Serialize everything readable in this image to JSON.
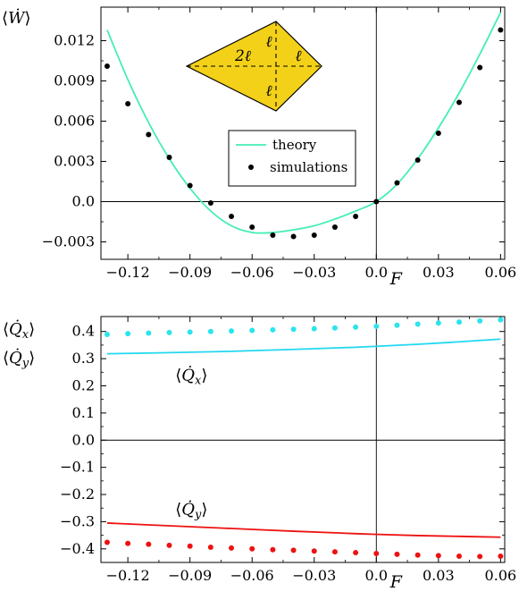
{
  "chart_data": [
    {
      "type": "scatter",
      "panel": "top",
      "ylabel": {
        "main": "W",
        "accent": "˙",
        "left": "⟨",
        "right": "⟩"
      },
      "xlabel": "F",
      "xlim": [
        -0.133,
        0.062
      ],
      "ylim": [
        -0.0043,
        0.0145
      ],
      "x_ticks": [
        -0.12,
        -0.09,
        -0.06,
        -0.03,
        0.0,
        0.03,
        0.06
      ],
      "x_tick_labels": [
        "−0.12",
        "−0.09",
        "−0.06",
        "−0.03",
        "0.0",
        "0.03",
        "0.06"
      ],
      "y_ticks": [
        -0.003,
        0.0,
        0.003,
        0.006,
        0.009,
        0.012
      ],
      "y_tick_labels": [
        "−0.003",
        "0.0",
        "0.003",
        "0.006",
        "0.009",
        "0.012"
      ],
      "grid": false,
      "legend": {
        "placement": "center-right",
        "entries": [
          "theory",
          "simulations"
        ]
      },
      "series": [
        {
          "name": "theory",
          "style": "line",
          "color": "#44eeb4",
          "x": [
            -0.13,
            -0.12,
            -0.11,
            -0.1,
            -0.09,
            -0.08,
            -0.07,
            -0.06,
            -0.05,
            -0.04,
            -0.03,
            -0.02,
            -0.01,
            0.0,
            0.01,
            0.02,
            0.03,
            0.04,
            0.05,
            0.06
          ],
          "y": [
            0.0128,
            0.0091,
            0.0059,
            0.0032,
            0.001,
            -0.0007,
            -0.0018,
            -0.0023,
            -0.0023,
            -0.0021,
            -0.0018,
            -0.0013,
            -0.0007,
            0.0,
            0.0013,
            0.0032,
            0.0055,
            0.0081,
            0.011,
            0.0141
          ]
        },
        {
          "name": "simulations",
          "style": "points",
          "color": "#000000",
          "x": [
            -0.13,
            -0.12,
            -0.11,
            -0.1,
            -0.09,
            -0.08,
            -0.07,
            -0.06,
            -0.05,
            -0.04,
            -0.03,
            -0.02,
            -0.01,
            0.0,
            0.01,
            0.02,
            0.03,
            0.04,
            0.05,
            0.06
          ],
          "y": [
            0.0101,
            0.0073,
            0.005,
            0.0033,
            0.0012,
            -0.0001,
            -0.0011,
            -0.0019,
            -0.0025,
            -0.0026,
            -0.0025,
            -0.0019,
            -0.0011,
            0.0,
            0.0014,
            0.0031,
            0.0051,
            0.0074,
            0.01,
            0.0128
          ]
        }
      ],
      "inset": {
        "shape": "kite",
        "fill": "#f3d119",
        "labels": [
          "2ℓ",
          "ℓ",
          "ℓ",
          "ℓ"
        ]
      }
    },
    {
      "type": "scatter",
      "panel": "bottom",
      "ylabel_lines": [
        "⟨Q̇x⟩",
        "⟨Q̇y⟩"
      ],
      "xlabel": "F",
      "xlim": [
        -0.133,
        0.062
      ],
      "ylim": [
        -0.45,
        0.455
      ],
      "x_ticks": [
        -0.12,
        -0.09,
        -0.06,
        -0.03,
        0.0,
        0.03,
        0.06
      ],
      "x_tick_labels": [
        "−0.12",
        "−0.09",
        "−0.06",
        "−0.03",
        "0.0",
        "0.03",
        "0.06"
      ],
      "y_ticks": [
        -0.4,
        -0.3,
        -0.2,
        -0.1,
        0.0,
        0.1,
        0.2,
        0.3,
        0.4
      ],
      "y_tick_labels": [
        "−0.4",
        "−0.3",
        "−0.2",
        "−0.1",
        "0.0",
        "0.1",
        "0.2",
        "0.3",
        "0.4"
      ],
      "grid": false,
      "annotations": [
        {
          "text": "⟨Q̇x⟩",
          "x": -0.085,
          "y": 0.24
        },
        {
          "text": "⟨Q̇y⟩",
          "x": -0.085,
          "y": -0.255
        }
      ],
      "series": [
        {
          "name": "⟨Q̇x⟩ theory",
          "style": "line",
          "color": "#22d8f0",
          "x": [
            -0.13,
            -0.1,
            -0.07,
            -0.04,
            -0.01,
            0.02,
            0.04,
            0.06
          ],
          "y": [
            0.318,
            0.322,
            0.327,
            0.334,
            0.342,
            0.353,
            0.362,
            0.372
          ]
        },
        {
          "name": "⟨Q̇x⟩ simulations",
          "style": "points",
          "color": "#2ae4ee",
          "x": [
            -0.13,
            -0.12,
            -0.11,
            -0.1,
            -0.09,
            -0.08,
            -0.07,
            -0.06,
            -0.05,
            -0.04,
            -0.03,
            -0.02,
            -0.01,
            0.0,
            0.01,
            0.02,
            0.03,
            0.04,
            0.05,
            0.06
          ],
          "y": [
            0.389,
            0.392,
            0.394,
            0.396,
            0.398,
            0.4,
            0.402,
            0.404,
            0.406,
            0.408,
            0.41,
            0.413,
            0.416,
            0.419,
            0.423,
            0.427,
            0.431,
            0.435,
            0.439,
            0.443
          ]
        },
        {
          "name": "⟨Q̇y⟩ theory",
          "style": "line",
          "color": "#ee1111",
          "x": [
            -0.13,
            -0.1,
            -0.07,
            -0.04,
            -0.01,
            0.02,
            0.04,
            0.06
          ],
          "y": [
            -0.305,
            -0.315,
            -0.325,
            -0.335,
            -0.344,
            -0.351,
            -0.354,
            -0.357
          ]
        },
        {
          "name": "⟨Q̇y⟩ simulations",
          "style": "points",
          "color": "#ee1111",
          "x": [
            -0.13,
            -0.12,
            -0.11,
            -0.1,
            -0.09,
            -0.08,
            -0.07,
            -0.06,
            -0.05,
            -0.04,
            -0.03,
            -0.02,
            -0.01,
            0.0,
            0.01,
            0.02,
            0.03,
            0.04,
            0.05,
            0.06
          ],
          "y": [
            -0.376,
            -0.38,
            -0.383,
            -0.387,
            -0.39,
            -0.394,
            -0.397,
            -0.4,
            -0.403,
            -0.405,
            -0.408,
            -0.411,
            -0.414,
            -0.417,
            -0.42,
            -0.423,
            -0.425,
            -0.427,
            -0.428,
            -0.427
          ]
        }
      ]
    }
  ]
}
